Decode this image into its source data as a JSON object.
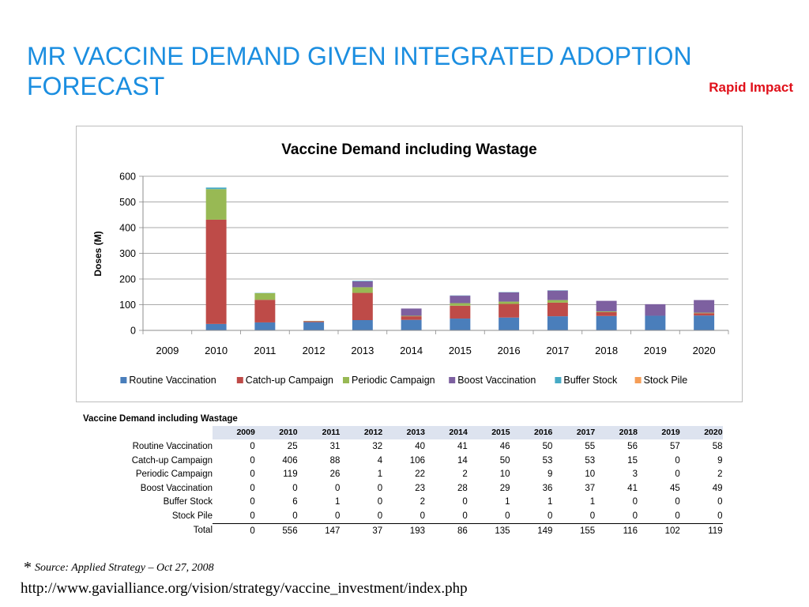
{
  "slide": {
    "title": "MR VACCINE DEMAND GIVEN INTEGRATED ADOPTION FORECAST",
    "tag": "Rapid Impact",
    "source_star": "*",
    "source_text": "Source: Applied Strategy – Oct 27, 2008",
    "url": "http://www.gavialliance.org/vision/strategy/vaccine_investment/index.php"
  },
  "colors": {
    "title": "#1b8ee0",
    "tag": "#e0101a",
    "series": [
      "#4a7ebb",
      "#be4b48",
      "#98b954",
      "#7d60a0",
      "#46aac5",
      "#f59d56"
    ]
  },
  "chart_data": {
    "type": "bar",
    "stacked": true,
    "title": "Vaccine Demand including Wastage",
    "xlabel": "",
    "ylabel": "Doses (M)",
    "ylim": [
      0,
      600
    ],
    "yticks": [
      0,
      100,
      200,
      300,
      400,
      500,
      600
    ],
    "grid": true,
    "legend_position": "bottom",
    "categories": [
      "2009",
      "2010",
      "2011",
      "2012",
      "2013",
      "2014",
      "2015",
      "2016",
      "2017",
      "2018",
      "2019",
      "2020"
    ],
    "series": [
      {
        "name": "Routine Vaccination",
        "values": [
          0,
          25,
          31,
          32,
          40,
          41,
          46,
          50,
          55,
          56,
          57,
          58
        ]
      },
      {
        "name": "Catch-up Campaign",
        "values": [
          0,
          406,
          88,
          4,
          106,
          14,
          50,
          53,
          53,
          15,
          0,
          9
        ]
      },
      {
        "name": "Periodic Campaign",
        "values": [
          0,
          119,
          26,
          1,
          22,
          2,
          10,
          9,
          10,
          3,
          0,
          2
        ]
      },
      {
        "name": "Boost Vaccination",
        "values": [
          0,
          0,
          0,
          0,
          23,
          28,
          29,
          36,
          37,
          41,
          45,
          49
        ]
      },
      {
        "name": "Buffer Stock",
        "values": [
          0,
          6,
          1,
          0,
          2,
          0,
          1,
          1,
          1,
          0,
          0,
          0
        ]
      },
      {
        "name": "Stock Pile",
        "values": [
          0,
          0,
          0,
          0,
          0,
          0,
          0,
          0,
          0,
          0,
          0,
          0
        ]
      }
    ]
  },
  "table": {
    "caption": "Vaccine Demand including Wastage",
    "years": [
      "2009",
      "2010",
      "2011",
      "2012",
      "2013",
      "2014",
      "2015",
      "2016",
      "2017",
      "2018",
      "2019",
      "2020"
    ],
    "rows": [
      {
        "label": "Routine Vaccination",
        "values": [
          "0",
          "25",
          "31",
          "32",
          "40",
          "41",
          "46",
          "50",
          "55",
          "56",
          "57",
          "58"
        ]
      },
      {
        "label": "Catch-up Campaign",
        "values": [
          "0",
          "406",
          "88",
          "4",
          "106",
          "14",
          "50",
          "53",
          "53",
          "15",
          "0",
          "9"
        ]
      },
      {
        "label": "Periodic Campaign",
        "values": [
          "0",
          "119",
          "26",
          "1",
          "22",
          "2",
          "10",
          "9",
          "10",
          "3",
          "0",
          "2"
        ]
      },
      {
        "label": "Boost Vaccination",
        "values": [
          "0",
          "0",
          "0",
          "0",
          "23",
          "28",
          "29",
          "36",
          "37",
          "41",
          "45",
          "49"
        ]
      },
      {
        "label": "Buffer Stock",
        "values": [
          "0",
          "6",
          "1",
          "0",
          "2",
          "0",
          "1",
          "1",
          "1",
          "0",
          "0",
          "0"
        ]
      },
      {
        "label": "Stock Pile",
        "values": [
          "0",
          "0",
          "0",
          "0",
          "0",
          "0",
          "0",
          "0",
          "0",
          "0",
          "0",
          "0"
        ]
      },
      {
        "label": "Total",
        "values": [
          "0",
          "556",
          "147",
          "37",
          "193",
          "86",
          "135",
          "149",
          "155",
          "116",
          "102",
          "119"
        ]
      }
    ]
  }
}
